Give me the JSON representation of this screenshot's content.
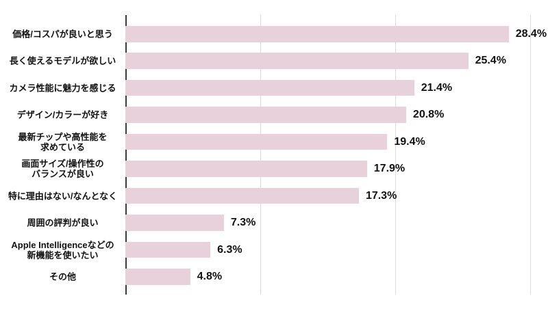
{
  "chart_data": {
    "type": "bar",
    "orientation": "horizontal",
    "title": "",
    "categories": [
      "価格/コスパが良いと思う",
      "長く使えるモデルが欲しい",
      "カメラ性能に魅力を感じる",
      "デザイン/カラーが好き",
      "最新チップや高性能を\n求めている",
      "画面サイズ/操作性の\nバランスが良い",
      "特に理由はない/なんとなく",
      "周囲の評判が良い",
      "Apple Intelligenceなどの\n新機能を使いたい",
      "その他"
    ],
    "values": [
      28.4,
      25.4,
      21.4,
      20.8,
      19.4,
      17.9,
      17.3,
      7.3,
      6.3,
      4.8
    ],
    "value_labels": [
      "28.4%",
      "25.4%",
      "21.4%",
      "20.8%",
      "19.4%",
      "17.9%",
      "17.3%",
      "7.3%",
      "6.3%",
      "4.8%"
    ],
    "xlim": [
      0,
      30.8
    ],
    "x_gridlines": [
      10,
      20,
      30
    ],
    "grid": "vertical-only",
    "legend": "none",
    "colors": {
      "bar": "#e8d1db",
      "gridline": "#d9d9d9",
      "axis": "#3b3b3b",
      "text": "#111111",
      "background": "#ffffff"
    }
  }
}
